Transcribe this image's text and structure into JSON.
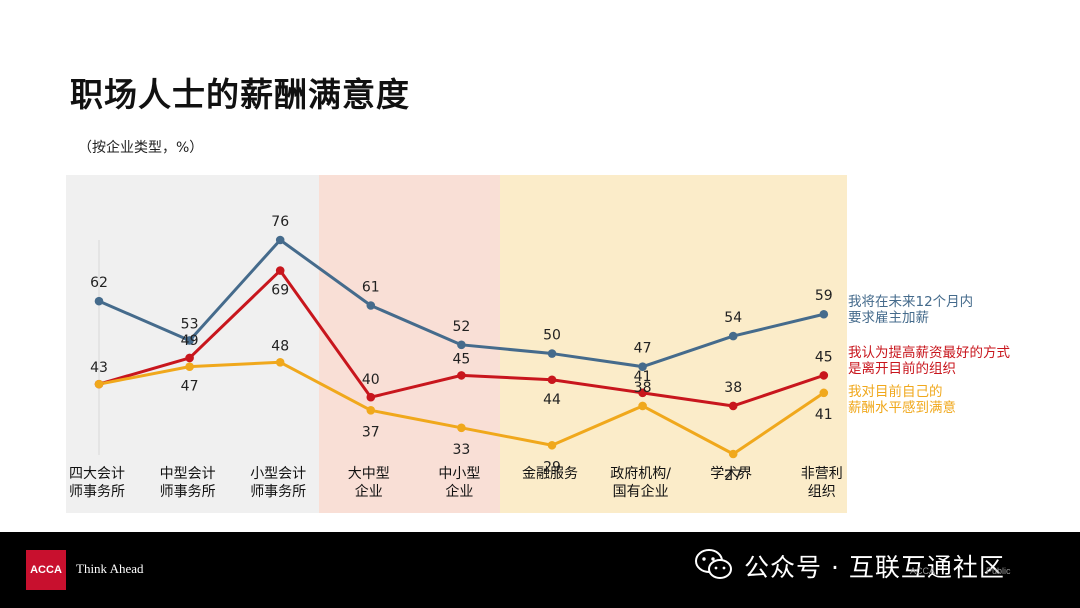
{
  "page": {
    "title": "职场人士的薪酬满意度",
    "subtitle": "（按企业类型，%）"
  },
  "chart_data": {
    "type": "line",
    "categories": [
      [
        "四大会计",
        "师事务所"
      ],
      [
        "中型会计",
        "师事务所"
      ],
      [
        "小型会计",
        "师事务所"
      ],
      [
        "大中型",
        "企业"
      ],
      [
        "中小型",
        "企业"
      ],
      [
        "金融服务"
      ],
      [
        "政府机构/",
        "国有企业"
      ],
      [
        "学术界"
      ],
      [
        "非营利",
        "组织"
      ]
    ],
    "series": [
      {
        "name": "我将在未来12个月内要求雇主加薪",
        "legend_lines": [
          "我将在未来12个月内",
          "要求雇主加薪"
        ],
        "color": "#456b8c",
        "values": [
          62,
          53,
          76,
          61,
          52,
          50,
          47,
          54,
          59
        ]
      },
      {
        "name": "我认为提高薪资最好的方式是离开目前的组织",
        "legend_lines": [
          "我认为提高薪资最好的方式",
          "是离开目前的组织"
        ],
        "color": "#c8161d",
        "values": [
          43,
          49,
          69,
          40,
          45,
          44,
          41,
          38,
          45
        ]
      },
      {
        "name": "我对目前自己的薪酬水平感到满意",
        "legend_lines": [
          "我对目前自己的",
          "薪酬水平感到满意"
        ],
        "color": "#f0a81c",
        "values": [
          43,
          47,
          48,
          37,
          33,
          29,
          38,
          27,
          41
        ]
      }
    ],
    "bands": [
      {
        "from": 0,
        "to": 2,
        "color": "#f0f0f0"
      },
      {
        "from": 3,
        "to": 4,
        "color": "#f9dfd6"
      },
      {
        "from": 5,
        "to": 8,
        "color": "#fbecc9"
      }
    ],
    "ylim": [
      20,
      80
    ],
    "grid": false,
    "legend_position": "right"
  },
  "footer": {
    "logo_text": "ACCA",
    "tagline": "Think Ahead",
    "wechat_text": "公众号 · 互联互通社区",
    "faint_left": "ACCA",
    "faint_right": "Public"
  }
}
